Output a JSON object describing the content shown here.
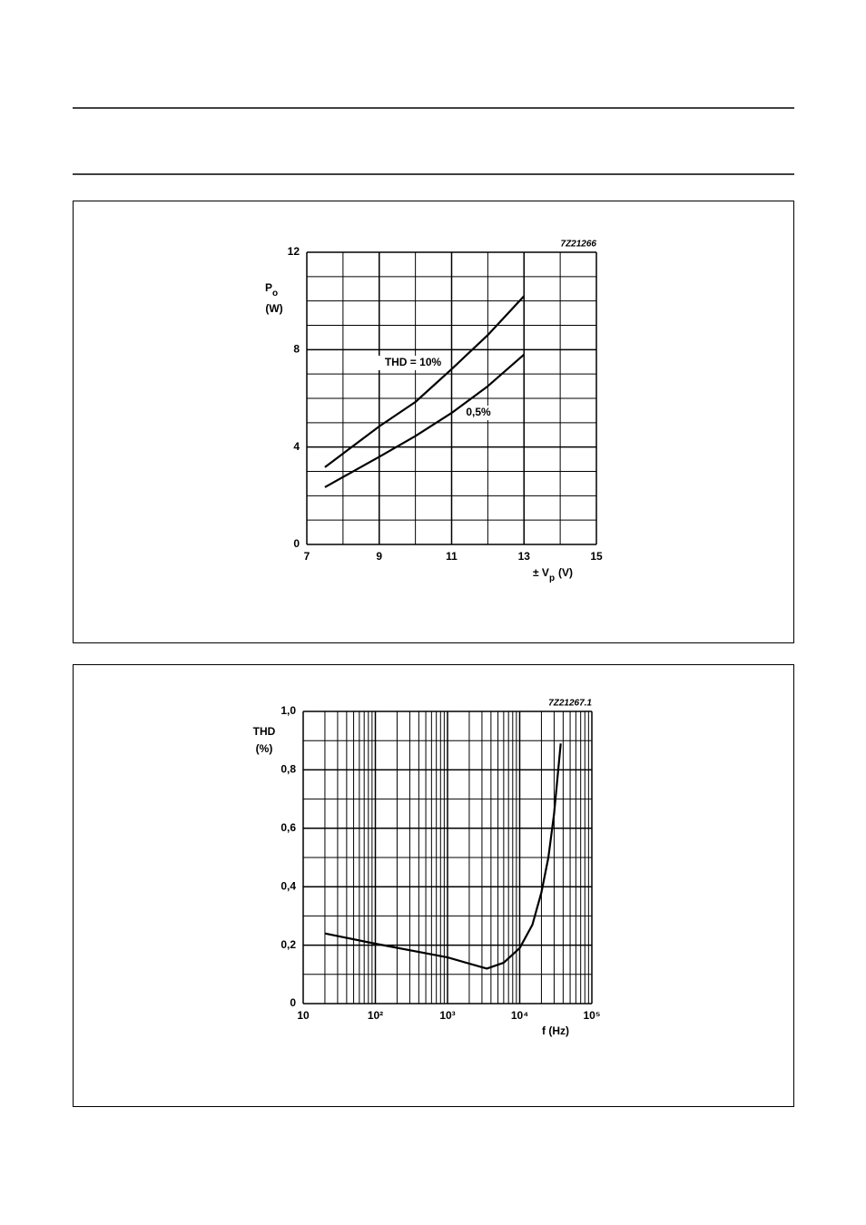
{
  "chart_data": [
    {
      "type": "line",
      "code": "7Z21266",
      "ylabel_symbol": "P",
      "ylabel_subscript": "o",
      "ylabel_unit": "(W)",
      "xlabel_symbol": "± V",
      "xlabel_subscript": "p",
      "xlabel_unit": "(V)",
      "xscale": "linear",
      "xlim": [
        7,
        15
      ],
      "xticks": [
        7,
        9,
        11,
        13,
        15
      ],
      "minor_xticks": [
        8,
        10,
        12,
        14
      ],
      "ylim": [
        0,
        12
      ],
      "yticks": [
        0,
        4,
        8,
        12
      ],
      "minor_yticks": [
        1,
        2,
        3,
        5,
        6,
        7,
        9,
        10,
        11
      ],
      "grid": true,
      "series": [
        {
          "name": "THD = 10%",
          "color": "#000000",
          "x": [
            7.5,
            9,
            10,
            11,
            12,
            13
          ],
          "values": [
            3.17,
            4.85,
            5.85,
            7.2,
            8.6,
            10.2
          ]
        },
        {
          "name": "0,5%",
          "color": "#000000",
          "x": [
            7.5,
            9,
            10,
            11,
            12,
            13
          ],
          "values": [
            2.35,
            3.6,
            4.45,
            5.4,
            6.5,
            7.8
          ]
        }
      ]
    },
    {
      "type": "line",
      "code": "7Z21267.1",
      "ylabel_symbol": "THD",
      "ylabel_unit": "(%)",
      "xlabel_symbol": "f (Hz)",
      "xscale": "log",
      "xlim": [
        10,
        100000
      ],
      "xticks": [
        10,
        {
          "value": 100,
          "label": "10²"
        },
        {
          "value": 1000,
          "label": "10³"
        },
        {
          "value": 10000,
          "label": "10⁴"
        },
        {
          "value": 100000,
          "label": "10⁵"
        }
      ],
      "minor_xticks": [
        20,
        30,
        40,
        50,
        60,
        70,
        80,
        90,
        200,
        300,
        400,
        500,
        600,
        700,
        800,
        900,
        2000,
        3000,
        4000,
        5000,
        6000,
        7000,
        8000,
        9000,
        20000,
        30000,
        40000,
        50000,
        60000,
        70000,
        80000,
        90000
      ],
      "ylim": [
        0,
        1.0
      ],
      "yticks": [
        0,
        {
          "value": 0.2,
          "label": "0,2"
        },
        {
          "value": 0.4,
          "label": "0,4"
        },
        {
          "value": 0.6,
          "label": "0,6"
        },
        {
          "value": 0.8,
          "label": "0,8"
        },
        {
          "value": 1.0,
          "label": "1,0"
        }
      ],
      "minor_yticks": [
        0.1,
        0.3,
        0.5,
        0.7,
        0.9
      ],
      "grid": true,
      "series": [
        {
          "color": "#000000",
          "x": [
            20,
            100,
            1000,
            3500,
            6000,
            10000,
            15000,
            20000,
            25000,
            30000,
            37000
          ],
          "values": [
            0.24,
            0.205,
            0.158,
            0.12,
            0.14,
            0.19,
            0.27,
            0.38,
            0.5,
            0.65,
            0.89
          ]
        }
      ]
    }
  ]
}
